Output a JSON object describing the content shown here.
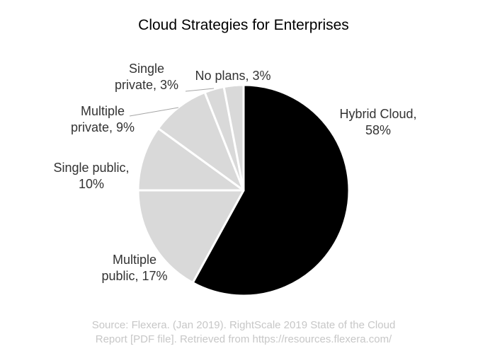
{
  "chart_data": {
    "type": "pie",
    "title": "Cloud Strategies for Enterprises",
    "slices": [
      {
        "name": "Hybrid Cloud",
        "value": 58,
        "label_lines": [
          "Hybrid Cloud,",
          "58%"
        ]
      },
      {
        "name": "Multiple public",
        "value": 17,
        "label_lines": [
          "Multiple",
          "public, 17%"
        ]
      },
      {
        "name": "Single public",
        "value": 10,
        "label_lines": [
          "Single public,",
          "10%"
        ]
      },
      {
        "name": "Multiple private",
        "value": 9,
        "label_lines": [
          "Multiple",
          "private, 9%"
        ]
      },
      {
        "name": "Single private",
        "value": 3,
        "label_lines": [
          "Single",
          "private, 3%"
        ]
      },
      {
        "name": "No plans",
        "value": 3,
        "label_lines": [
          "No plans, 3%"
        ]
      }
    ],
    "colors": {
      "Hybrid Cloud": "#000000",
      "others": "#d9d9d9",
      "slice_border": "#ffffff",
      "leader_line": "#a6a6a6"
    },
    "source_lines": [
      "Source: Flexera. (Jan 2019). RightScale 2019 State of the Cloud",
      "Report [PDF file]. Retrieved from https://resources.flexera.com/"
    ]
  }
}
